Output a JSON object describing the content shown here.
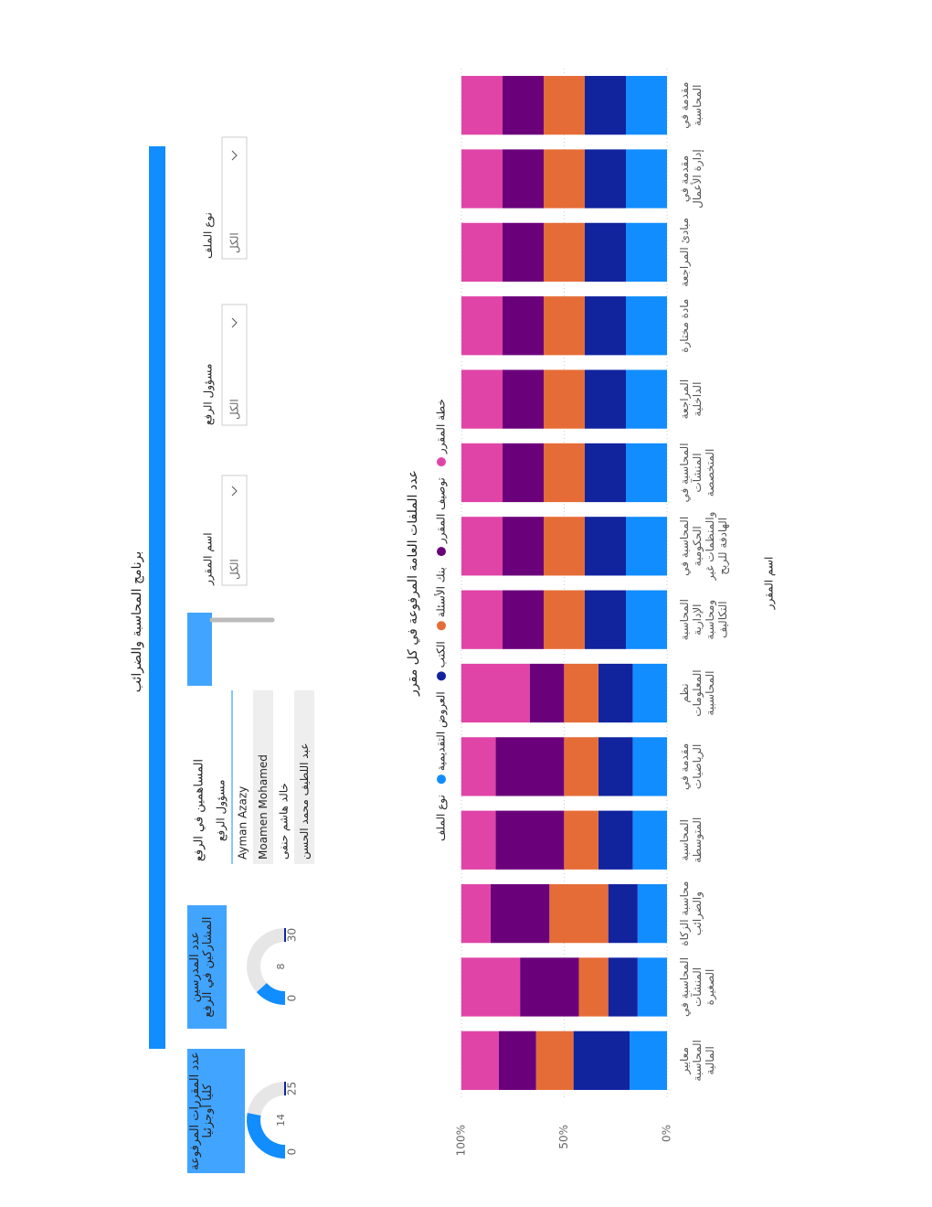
{
  "header": {
    "title": "برنامج المحاسبة والضرائب"
  },
  "cards": [
    {
      "title": "عدد المقررات المرفوعة كليا أوجزئيا",
      "value": 14,
      "min": 0,
      "max": 25
    },
    {
      "title": "عدد المدرسين المشاركين في الرفع",
      "value": 8,
      "min": 0,
      "max": 30
    }
  ],
  "table": {
    "title": "المساهمين في الرفع",
    "column": "مسؤول الرفع",
    "rows": [
      "Ayman Azazy",
      "Moamen Mohamed",
      "خالد هاشم حنفى",
      "عبد اللطيف محمد الحسن"
    ]
  },
  "slicers": [
    {
      "label": "اسم المقرر",
      "value": "الكل"
    },
    {
      "label": "مسؤول الرفع",
      "value": "الكل"
    },
    {
      "label": "نوع الملف",
      "value": "الكل"
    }
  ],
  "chart_data": {
    "type": "stacked_bar_100",
    "title": "عدد الملفات العامة المرفوعة في كل مقرر",
    "legend_title": "نوع الملف",
    "x_label": "اسم المقرر",
    "categories": [
      "معايير المحاسبة المالية",
      "المحاسبة في المنشآت الصغيرة",
      "محاسبة الزكاة والضرائب",
      "المحاسبة المتوسطة",
      "مقدمة في الرياضيات",
      "نظم المعلومات المحاسبية",
      "المحاسبة الإدارية ومحاسبة التكاليف",
      "المحاسبة في الحكومية والمنظمات غير الهادفة للربح",
      "المحاسبة في المنشآت المتخصصة",
      "المراجعة الداخلية",
      "مادة مختارة",
      "مبادئ المراجعة",
      "مقدمة في إدارة الأعمال",
      "مقدمة في المحاسبة"
    ],
    "series": [
      {
        "name": "العروض التقديمية",
        "color": "#118DFF",
        "values": [
          18.2,
          14.3,
          14.3,
          16.7,
          16.7,
          16.7,
          20,
          20,
          20,
          20,
          20,
          20,
          20,
          20
        ]
      },
      {
        "name": "الكتب",
        "color": "#12239E",
        "values": [
          27.3,
          14.3,
          14.3,
          16.7,
          16.7,
          16.7,
          20,
          20,
          20,
          20,
          20,
          20,
          20,
          20
        ]
      },
      {
        "name": "بنك الأسئلة",
        "color": "#E66C37",
        "values": [
          18.2,
          14.3,
          28.6,
          16.7,
          16.7,
          16.7,
          20,
          20,
          20,
          20,
          20,
          20,
          20,
          20
        ]
      },
      {
        "name": "توصيف المقرر",
        "color": "#6B007B",
        "values": [
          18.2,
          28.6,
          28.6,
          33.3,
          33.3,
          16.7,
          20,
          20,
          20,
          20,
          20,
          20,
          20,
          20
        ]
      },
      {
        "name": "خطة المقرر",
        "color": "#E044A7",
        "values": [
          18.2,
          28.6,
          14.3,
          16.7,
          16.7,
          33.3,
          20,
          20,
          20,
          20,
          20,
          20,
          20,
          20
        ]
      }
    ],
    "ylim": [
      0,
      100
    ],
    "yticks": [
      {
        "value": 0,
        "label": "0%"
      },
      {
        "value": 50,
        "label": "50%"
      },
      {
        "value": 100,
        "label": "100%"
      }
    ],
    "grid": true
  }
}
